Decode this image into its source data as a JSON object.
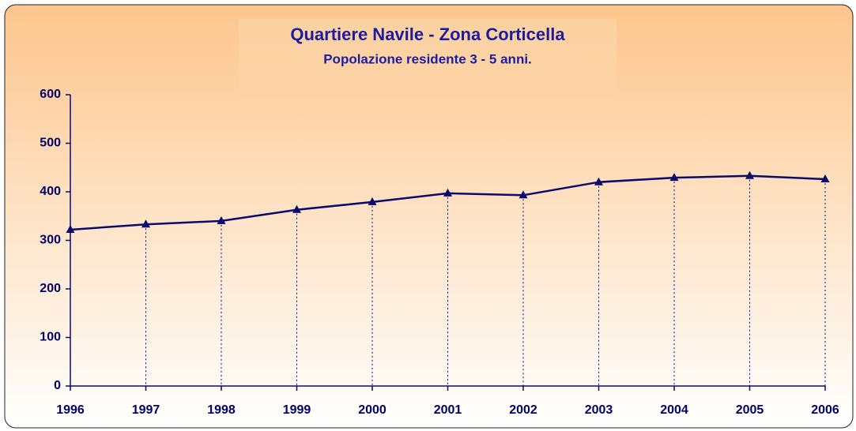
{
  "chart_data": {
    "type": "line",
    "title": "Quartiere Navile - Zona Corticella",
    "subtitle": "Popolazione residente 3 - 5 anni.",
    "categories": [
      "1996",
      "1997",
      "1998",
      "1999",
      "2000",
      "2001",
      "2002",
      "2003",
      "2004",
      "2005",
      "2006"
    ],
    "values": [
      322,
      333,
      340,
      363,
      379,
      397,
      393,
      420,
      429,
      433,
      426
    ],
    "color": "#0a0a6e",
    "ylim": [
      0,
      600
    ],
    "yticks": [
      0,
      100,
      200,
      300,
      400,
      500,
      600
    ],
    "drop_lines": true
  }
}
